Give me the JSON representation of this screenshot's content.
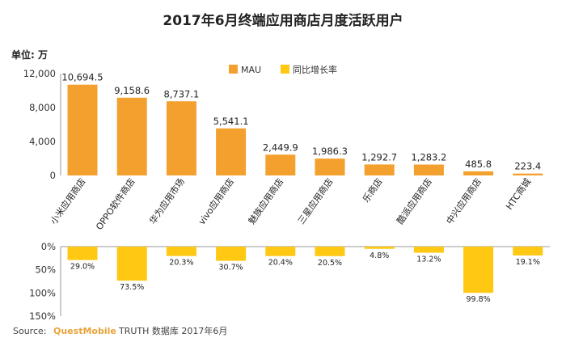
{
  "colors": {
    "mau": "#F4A02E",
    "growth": "#FFC813",
    "axis": "#999999"
  },
  "chart_data": [
    {
      "type": "bar",
      "title": "2017年6月终端应用商店月度活跃用户",
      "unit_label": "单位: 万",
      "legend": [
        {
          "name": "MAU",
          "color": "#F4A02E"
        },
        {
          "name": "同比增长率",
          "color": "#FFC813"
        }
      ],
      "legend_position": "top-right",
      "categories": [
        "小米应用商店",
        "OPPO软件商店",
        "华为应用市场",
        "vivo应用商店",
        "魅族应用商店",
        "三星应用商店",
        "乐商店",
        "酷派应用商店",
        "中兴应用商店",
        "HTC商城"
      ],
      "series": [
        {
          "name": "MAU",
          "values": [
            10694.5,
            9158.6,
            8737.1,
            5541.1,
            2449.9,
            1986.3,
            1292.7,
            1283.2,
            485.8,
            223.4
          ],
          "labels": [
            "10,694.5",
            "9,158.6",
            "8,737.1",
            "5,541.1",
            "2,449.9",
            "1,986.3",
            "1,292.7",
            "1,283.2",
            "485.8",
            "223.4"
          ]
        }
      ],
      "yticks": [
        "12,000",
        "8,000",
        "4,000",
        "0"
      ],
      "ytick_values": [
        12000,
        8000,
        4000,
        0
      ],
      "ylim": [
        0,
        12000
      ],
      "grid": false
    },
    {
      "type": "bar",
      "orientation": "downward",
      "categories": [
        "小米应用商店",
        "OPPO软件商店",
        "华为应用市场",
        "vivo应用商店",
        "魅族应用商店",
        "三星应用商店",
        "乐商店",
        "酷派应用商店",
        "中兴应用商店",
        "HTC商城"
      ],
      "series": [
        {
          "name": "同比增长率",
          "values": [
            29.0,
            73.5,
            20.3,
            30.7,
            20.4,
            20.5,
            4.8,
            13.2,
            99.8,
            19.1
          ],
          "labels": [
            "29.0%",
            "73.5%",
            "20.3%",
            "30.7%",
            "20.4%",
            "20.5%",
            "4.8%",
            "13.2%",
            "99.8%",
            "19.1%"
          ]
        }
      ],
      "yticks": [
        "0%",
        "50%",
        "100%",
        "150%"
      ],
      "ytick_values": [
        0,
        50,
        100,
        150
      ],
      "ylim": [
        0,
        150
      ],
      "grid": false
    }
  ],
  "source": {
    "prefix": "Source:",
    "brand": "QuestMobile",
    "suffix": "TRUTH 数据库 2017年6月"
  }
}
